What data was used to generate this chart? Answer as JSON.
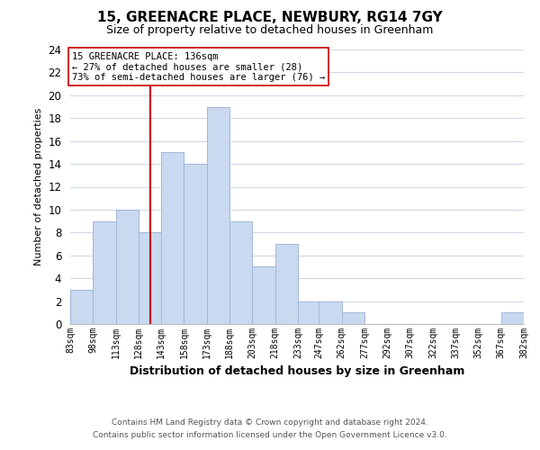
{
  "title": "15, GREENACRE PLACE, NEWBURY, RG14 7GY",
  "subtitle": "Size of property relative to detached houses in Greenham",
  "xlabel": "Distribution of detached houses by size in Greenham",
  "ylabel": "Number of detached properties",
  "bin_edges": [
    83,
    98,
    113,
    128,
    143,
    158,
    173,
    188,
    203,
    218,
    233,
    247,
    262,
    277,
    292,
    307,
    322,
    337,
    352,
    367,
    382
  ],
  "bin_labels": [
    "83sqm",
    "98sqm",
    "113sqm",
    "128sqm",
    "143sqm",
    "158sqm",
    "173sqm",
    "188sqm",
    "203sqm",
    "218sqm",
    "233sqm",
    "247sqm",
    "262sqm",
    "277sqm",
    "292sqm",
    "307sqm",
    "322sqm",
    "337sqm",
    "352sqm",
    "367sqm",
    "382sqm"
  ],
  "counts": [
    3,
    9,
    10,
    8,
    15,
    14,
    19,
    9,
    5,
    7,
    2,
    2,
    1,
    0,
    0,
    0,
    0,
    0,
    0,
    1
  ],
  "bar_color": "#c9d9f0",
  "bar_edgecolor": "#a0b8d8",
  "property_line_x": 136,
  "property_line_color": "#cc0000",
  "ylim": [
    0,
    24
  ],
  "yticks": [
    0,
    2,
    4,
    6,
    8,
    10,
    12,
    14,
    16,
    18,
    20,
    22,
    24
  ],
  "annotation_text": "15 GREENACRE PLACE: 136sqm\n← 27% of detached houses are smaller (28)\n73% of semi-detached houses are larger (76) →",
  "annotation_box_color": "#ffffff",
  "annotation_box_edgecolor": "#cc0000",
  "footer_line1": "Contains HM Land Registry data © Crown copyright and database right 2024.",
  "footer_line2": "Contains public sector information licensed under the Open Government Licence v3.0.",
  "background_color": "#ffffff",
  "grid_color": "#d0d8e8"
}
